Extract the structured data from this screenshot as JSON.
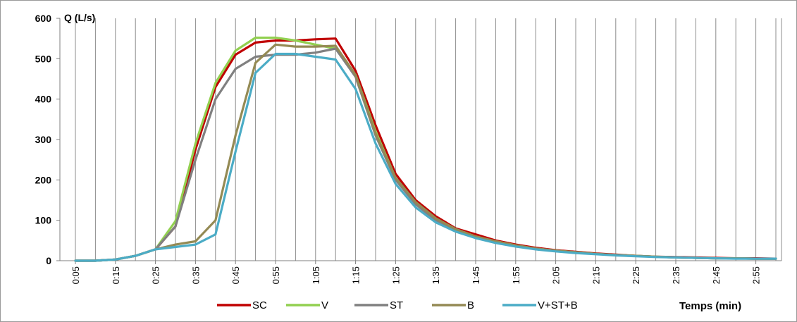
{
  "chart_data": {
    "type": "line",
    "ylabel": "Q (L/s)",
    "xlabel": "Temps (min)",
    "ylim": [
      0,
      600
    ],
    "yticks": [
      0,
      100,
      200,
      300,
      400,
      500,
      600
    ],
    "x": [
      "0:05",
      "0:10",
      "0:15",
      "0:20",
      "0:25",
      "0:30",
      "0:35",
      "0:40",
      "0:45",
      "0:50",
      "0:55",
      "1:00",
      "1:05",
      "1:10",
      "1:15",
      "1:20",
      "1:25",
      "1:30",
      "1:35",
      "1:40",
      "1:45",
      "1:50",
      "1:55",
      "2:00",
      "2:05",
      "2:10",
      "2:15",
      "2:20",
      "2:25",
      "2:30",
      "2:35",
      "2:40",
      "2:45",
      "2:50",
      "2:55",
      "3:00"
    ],
    "xtick_labels": [
      "0:05",
      "0:15",
      "0:25",
      "0:35",
      "0:45",
      "0:55",
      "1:05",
      "1:15",
      "1:25",
      "1:35",
      "1:45",
      "1:55",
      "2:05",
      "2:15",
      "2:25",
      "2:35",
      "2:45",
      "2:55"
    ],
    "grid": "vertical",
    "legend_position": "bottom",
    "series": [
      {
        "name": "SC",
        "color": "#c00000",
        "values": [
          0,
          0,
          3,
          12,
          28,
          85,
          275,
          430,
          510,
          540,
          545,
          545,
          548,
          550,
          470,
          335,
          215,
          150,
          110,
          80,
          65,
          50,
          40,
          32,
          26,
          22,
          18,
          15,
          12,
          10,
          9,
          8,
          7,
          6,
          6,
          5
        ]
      },
      {
        "name": "V",
        "color": "#92d050",
        "values": [
          0,
          0,
          3,
          12,
          28,
          98,
          290,
          440,
          520,
          552,
          552,
          545,
          535,
          525,
          460,
          320,
          205,
          145,
          105,
          78,
          60,
          48,
          38,
          30,
          25,
          21,
          17,
          14,
          12,
          10,
          8,
          7,
          6,
          6,
          5,
          5
        ]
      },
      {
        "name": "ST",
        "color": "#808080",
        "values": [
          0,
          0,
          3,
          12,
          28,
          85,
          250,
          400,
          475,
          505,
          510,
          510,
          515,
          525,
          455,
          310,
          200,
          140,
          100,
          75,
          58,
          46,
          37,
          30,
          25,
          20,
          17,
          14,
          12,
          10,
          8,
          7,
          6,
          6,
          5,
          5
        ]
      },
      {
        "name": "B",
        "color": "#948a54",
        "values": [
          0,
          0,
          3,
          12,
          28,
          40,
          48,
          100,
          310,
          490,
          535,
          530,
          530,
          532,
          460,
          315,
          205,
          145,
          105,
          78,
          60,
          48,
          38,
          30,
          25,
          21,
          17,
          14,
          12,
          10,
          8,
          7,
          6,
          6,
          5,
          5
        ]
      },
      {
        "name": "V+ST+B",
        "color": "#4bacc6",
        "values": [
          0,
          0,
          3,
          12,
          28,
          34,
          40,
          65,
          270,
          465,
          512,
          512,
          505,
          498,
          425,
          290,
          190,
          132,
          95,
          72,
          56,
          44,
          35,
          28,
          23,
          19,
          16,
          13,
          11,
          9,
          8,
          7,
          6,
          5,
          5,
          5
        ]
      }
    ]
  }
}
